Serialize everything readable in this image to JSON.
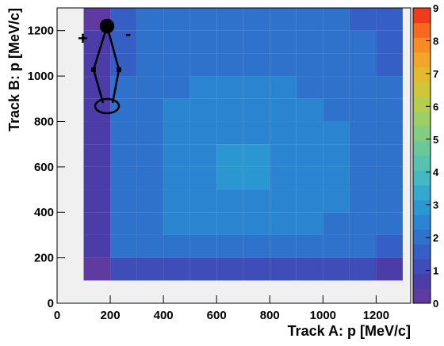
{
  "chart_data": {
    "type": "heatmap",
    "x_label": "Track A: p [MeV/c]",
    "y_label": "Track B: p [MeV/c]",
    "xlim": [
      0,
      1330
    ],
    "ylim": [
      0,
      1300
    ],
    "xticks": [
      0,
      200,
      400,
      600,
      800,
      1000,
      1200
    ],
    "yticks": [
      0,
      200,
      400,
      600,
      800,
      1000,
      1200
    ],
    "xbins": [
      0,
      100,
      200,
      300,
      400,
      500,
      600,
      700,
      800,
      900,
      1000,
      1100,
      1200,
      1300
    ],
    "ybins": [
      0,
      100,
      200,
      300,
      400,
      500,
      600,
      700,
      800,
      900,
      1000,
      1100,
      1200,
      1300
    ],
    "z": [
      [
        0,
        0,
        0,
        0,
        0,
        0,
        0,
        0,
        0,
        0,
        0,
        0,
        0
      ],
      [
        0,
        0.3,
        1,
        1.1,
        1.1,
        1.2,
        1.2,
        1.2,
        1.2,
        1.1,
        1.1,
        1,
        0.6
      ],
      [
        0,
        0.6,
        1.8,
        2,
        2.1,
        2.2,
        2.2,
        2.2,
        2.2,
        2.1,
        2,
        1.9,
        1.7
      ],
      [
        0,
        0.7,
        1.9,
        2.1,
        2.3,
        2.4,
        2.4,
        2.4,
        2.4,
        2.3,
        2.2,
        2,
        1.8
      ],
      [
        0,
        0.7,
        2,
        2.2,
        2.4,
        2.5,
        2.6,
        2.6,
        2.5,
        2.4,
        2.3,
        2.1,
        1.9
      ],
      [
        0,
        0.7,
        2,
        2.2,
        2.4,
        2.6,
        2.7,
        2.7,
        2.6,
        2.5,
        2.3,
        2.1,
        1.9
      ],
      [
        0,
        0.7,
        2,
        2.2,
        2.4,
        2.6,
        2.7,
        2.7,
        2.6,
        2.5,
        2.3,
        2.1,
        1.9
      ],
      [
        0,
        0.7,
        2,
        2.2,
        2.4,
        2.5,
        2.6,
        2.6,
        2.5,
        2.4,
        2.3,
        2.1,
        1.9
      ],
      [
        0,
        0.7,
        1.9,
        2.1,
        2.3,
        2.4,
        2.5,
        2.5,
        2.4,
        2.3,
        2.2,
        2,
        1.8
      ],
      [
        0,
        0.6,
        1.8,
        2,
        2.2,
        2.3,
        2.3,
        2.3,
        2.3,
        2.2,
        2.1,
        2,
        1.8
      ],
      [
        0,
        0.5,
        1.7,
        2,
        2.1,
        2.2,
        2.2,
        2.2,
        2.2,
        2.1,
        2,
        1.9,
        1.7
      ],
      [
        0,
        0.5,
        1.7,
        1.9,
        2,
        2.1,
        2.1,
        2.1,
        2.1,
        2,
        2,
        1.9,
        1.7
      ],
      [
        0,
        0.4,
        1.5,
        1.8,
        1.9,
        1.9,
        1.9,
        1.9,
        1.9,
        1.9,
        1.8,
        1.7,
        1.5
      ]
    ],
    "zlim": [
      0,
      9
    ],
    "zticks": [
      0,
      1,
      2,
      3,
      4,
      5,
      6,
      7,
      8,
      9
    ],
    "colorscale": [
      "#5e3aa1",
      "#4b3ca8",
      "#3f4db8",
      "#355fc4",
      "#2e72cc",
      "#2a84d0",
      "#2b97d1",
      "#34a9cd",
      "#43b8c2",
      "#55c3b1",
      "#6ac99a",
      "#82cd80",
      "#9ccf65",
      "#b6cd4d",
      "#cfc63a",
      "#e4b92f",
      "#f1a62a",
      "#f78b25",
      "#f66a20",
      "#ef3b1c"
    ],
    "background": "#f0f0f0",
    "annotations": [
      "+",
      "-"
    ]
  }
}
